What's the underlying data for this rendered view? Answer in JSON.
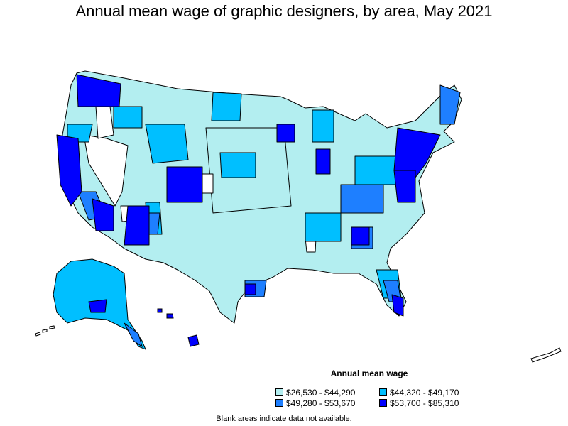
{
  "title": "Annual mean wage of graphic designers, by area, May 2021",
  "legend": {
    "title": "Annual mean wage",
    "items": [
      {
        "label": "$26,530 - $44,290",
        "color": "#b3eef0"
      },
      {
        "label": "$44,320 - $49,170",
        "color": "#00bfff"
      },
      {
        "label": "$49,280 - $53,670",
        "color": "#1e7fff"
      },
      {
        "label": "$53,700 - $85,310",
        "color": "#0000ff"
      }
    ]
  },
  "note": "Blank areas indicate data not available."
}
